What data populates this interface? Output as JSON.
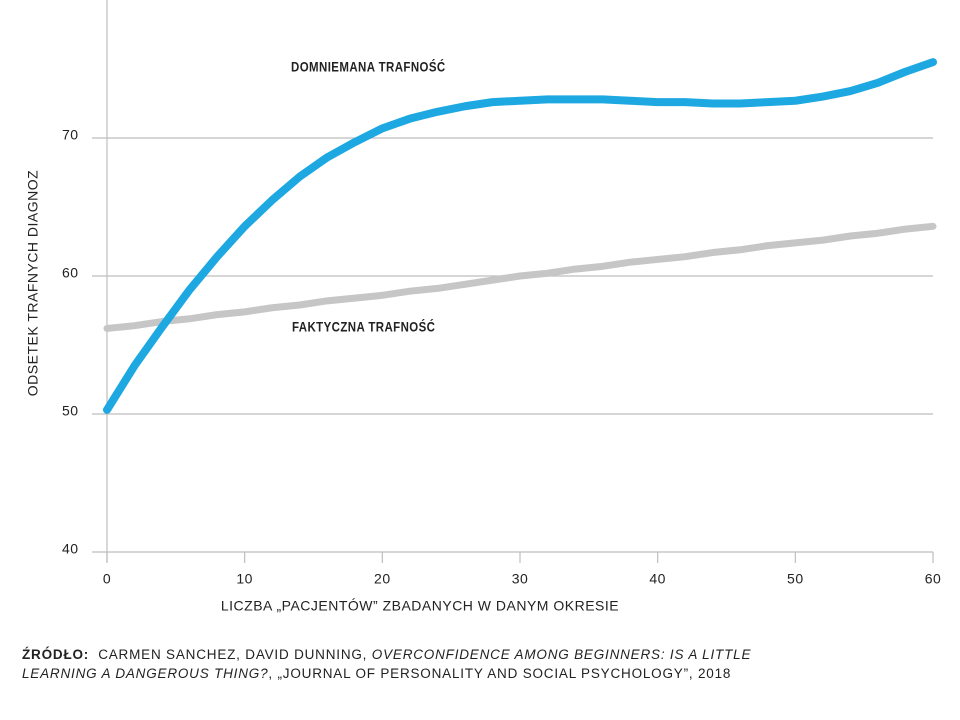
{
  "chart_data": {
    "type": "line",
    "x": [
      0,
      2,
      4,
      6,
      8,
      10,
      12,
      14,
      16,
      18,
      20,
      22,
      24,
      26,
      28,
      30,
      32,
      34,
      36,
      38,
      40,
      42,
      44,
      46,
      48,
      50,
      52,
      54,
      56,
      58,
      60
    ],
    "series": [
      {
        "name": "DOMNIEMANA TRAFNOŚĆ",
        "color": "#1ea8e2",
        "values": [
          50.3,
          53.5,
          56.3,
          59.0,
          61.4,
          63.6,
          65.5,
          67.2,
          68.6,
          69.7,
          70.7,
          71.4,
          71.9,
          72.3,
          72.6,
          72.7,
          72.8,
          72.8,
          72.8,
          72.7,
          72.6,
          72.6,
          72.5,
          72.5,
          72.6,
          72.7,
          73.0,
          73.4,
          74.0,
          74.8,
          75.5
        ]
      },
      {
        "name": "FAKTYCZNA TRAFNOŚĆ",
        "color": "#c6c6c6",
        "values": [
          56.2,
          56.4,
          56.7,
          56.9,
          57.2,
          57.4,
          57.7,
          57.9,
          58.2,
          58.4,
          58.6,
          58.9,
          59.1,
          59.4,
          59.7,
          60.0,
          60.2,
          60.5,
          60.7,
          61.0,
          61.2,
          61.4,
          61.7,
          61.9,
          62.2,
          62.4,
          62.6,
          62.9,
          63.1,
          63.4,
          63.6
        ]
      }
    ],
    "xlim": [
      0,
      60
    ],
    "xticks": [
      0,
      10,
      20,
      30,
      40,
      50,
      60
    ],
    "ylim": [
      40,
      80
    ],
    "yticks": [
      40,
      50,
      60,
      70
    ],
    "grid": true,
    "x_label": "LICZBA „PACJENTÓW” ZBADANYCH W DANYM OKRESIE",
    "y_label": "ODSETEK TRAFNYCH DIAGNOZ",
    "source": {
      "label": "ŹRÓDŁO:",
      "authors": "CARMEN SANCHEZ, DAVID DUNNING,",
      "title": "OVERCONFIDENCE AMONG BEGINNERS: IS A LITTLE LEARNING A DANGEROUS THING?",
      "rest": ", „JOURNAL OF PERSONALITY AND SOCIAL PSYCHOLOGY”, 2018"
    }
  }
}
